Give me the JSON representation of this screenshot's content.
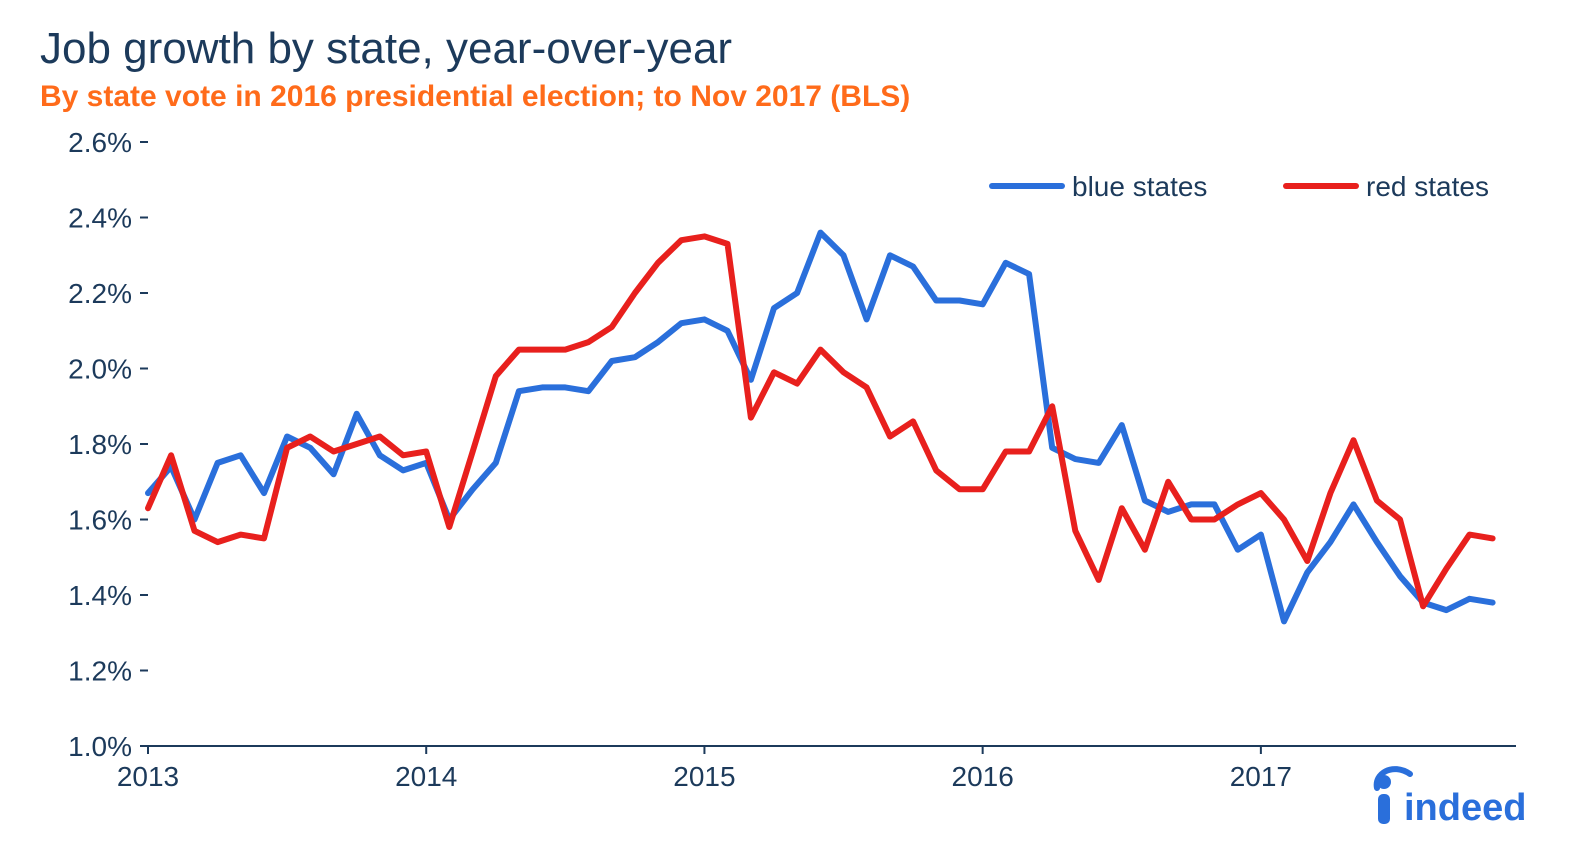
{
  "chart": {
    "type": "line",
    "title": "Job growth by state, year-over-year",
    "subtitle": "By state vote in 2016 presidential election; to Nov 2017 (BLS)",
    "title_color": "#1c3a5b",
    "title_fontsize": 44,
    "subtitle_color": "#ff6b1a",
    "subtitle_fontsize": 30,
    "background_color": "#ffffff",
    "axis_text_color": "#1c3a5b",
    "axis_fontsize": 28,
    "axis_line_color": "#1c3a5b",
    "axis_line_width": 2,
    "line_width": 6,
    "x": {
      "min": 2013.0,
      "max": 2017.917,
      "tick_values": [
        2013,
        2014,
        2015,
        2016,
        2017
      ],
      "tick_labels": [
        "2013",
        "2014",
        "2015",
        "2016",
        "2017"
      ]
    },
    "y": {
      "min": 1.0,
      "max": 2.6,
      "tick_values": [
        1.0,
        1.2,
        1.4,
        1.6,
        1.8,
        2.0,
        2.2,
        2.4,
        2.6
      ],
      "tick_labels": [
        "1.0%",
        "1.2%",
        "1.4%",
        "1.6%",
        "1.8%",
        "2.0%",
        "2.2%",
        "2.4%",
        "2.6%"
      ]
    },
    "legend": {
      "position": "top-right",
      "items": [
        {
          "key": "blue",
          "label": "blue states",
          "color": "#2a6fdb"
        },
        {
          "key": "red",
          "label": "red states",
          "color": "#e8201d"
        }
      ]
    },
    "series": {
      "blue": {
        "label": "blue states",
        "color": "#2a6fdb",
        "points": [
          [
            2013.0,
            1.67
          ],
          [
            2013.083,
            1.74
          ],
          [
            2013.167,
            1.6
          ],
          [
            2013.25,
            1.75
          ],
          [
            2013.333,
            1.77
          ],
          [
            2013.417,
            1.67
          ],
          [
            2013.5,
            1.82
          ],
          [
            2013.583,
            1.79
          ],
          [
            2013.667,
            1.72
          ],
          [
            2013.75,
            1.88
          ],
          [
            2013.833,
            1.77
          ],
          [
            2013.917,
            1.73
          ],
          [
            2014.0,
            1.75
          ],
          [
            2014.083,
            1.6
          ],
          [
            2014.167,
            1.68
          ],
          [
            2014.25,
            1.75
          ],
          [
            2014.333,
            1.94
          ],
          [
            2014.417,
            1.95
          ],
          [
            2014.5,
            1.95
          ],
          [
            2014.583,
            1.94
          ],
          [
            2014.667,
            2.02
          ],
          [
            2014.75,
            2.03
          ],
          [
            2014.833,
            2.07
          ],
          [
            2014.917,
            2.12
          ],
          [
            2015.0,
            2.13
          ],
          [
            2015.083,
            2.1
          ],
          [
            2015.167,
            1.97
          ],
          [
            2015.25,
            2.16
          ],
          [
            2015.333,
            2.2
          ],
          [
            2015.417,
            2.36
          ],
          [
            2015.5,
            2.3
          ],
          [
            2015.583,
            2.13
          ],
          [
            2015.667,
            2.3
          ],
          [
            2015.75,
            2.27
          ],
          [
            2015.833,
            2.18
          ],
          [
            2015.917,
            2.18
          ],
          [
            2016.0,
            2.17
          ],
          [
            2016.083,
            2.28
          ],
          [
            2016.167,
            2.25
          ],
          [
            2016.25,
            1.79
          ],
          [
            2016.333,
            1.76
          ],
          [
            2016.417,
            1.75
          ],
          [
            2016.5,
            1.85
          ],
          [
            2016.583,
            1.65
          ],
          [
            2016.667,
            1.62
          ],
          [
            2016.75,
            1.64
          ],
          [
            2016.833,
            1.64
          ],
          [
            2016.917,
            1.52
          ],
          [
            2017.0,
            1.56
          ],
          [
            2017.083,
            1.33
          ],
          [
            2017.167,
            1.46
          ],
          [
            2017.25,
            1.54
          ],
          [
            2017.333,
            1.64
          ],
          [
            2017.417,
            1.54
          ],
          [
            2017.5,
            1.45
          ],
          [
            2017.583,
            1.38
          ],
          [
            2017.667,
            1.36
          ],
          [
            2017.75,
            1.39
          ],
          [
            2017.833,
            1.38
          ]
        ]
      },
      "red": {
        "label": "red states",
        "color": "#e8201d",
        "points": [
          [
            2013.0,
            1.63
          ],
          [
            2013.083,
            1.77
          ],
          [
            2013.167,
            1.57
          ],
          [
            2013.25,
            1.54
          ],
          [
            2013.333,
            1.56
          ],
          [
            2013.417,
            1.55
          ],
          [
            2013.5,
            1.79
          ],
          [
            2013.583,
            1.82
          ],
          [
            2013.667,
            1.78
          ],
          [
            2013.75,
            1.8
          ],
          [
            2013.833,
            1.82
          ],
          [
            2013.917,
            1.77
          ],
          [
            2014.0,
            1.78
          ],
          [
            2014.083,
            1.58
          ],
          [
            2014.167,
            1.78
          ],
          [
            2014.25,
            1.98
          ],
          [
            2014.333,
            2.05
          ],
          [
            2014.417,
            2.05
          ],
          [
            2014.5,
            2.05
          ],
          [
            2014.583,
            2.07
          ],
          [
            2014.667,
            2.11
          ],
          [
            2014.75,
            2.2
          ],
          [
            2014.833,
            2.28
          ],
          [
            2014.917,
            2.34
          ],
          [
            2015.0,
            2.35
          ],
          [
            2015.083,
            2.33
          ],
          [
            2015.167,
            1.87
          ],
          [
            2015.25,
            1.99
          ],
          [
            2015.333,
            1.96
          ],
          [
            2015.417,
            2.05
          ],
          [
            2015.5,
            1.99
          ],
          [
            2015.583,
            1.95
          ],
          [
            2015.667,
            1.82
          ],
          [
            2015.75,
            1.86
          ],
          [
            2015.833,
            1.73
          ],
          [
            2015.917,
            1.68
          ],
          [
            2016.0,
            1.68
          ],
          [
            2016.083,
            1.78
          ],
          [
            2016.167,
            1.78
          ],
          [
            2016.25,
            1.9
          ],
          [
            2016.333,
            1.57
          ],
          [
            2016.417,
            1.44
          ],
          [
            2016.5,
            1.63
          ],
          [
            2016.583,
            1.52
          ],
          [
            2016.667,
            1.7
          ],
          [
            2016.75,
            1.6
          ],
          [
            2016.833,
            1.6
          ],
          [
            2016.917,
            1.64
          ],
          [
            2017.0,
            1.67
          ],
          [
            2017.083,
            1.6
          ],
          [
            2017.167,
            1.49
          ],
          [
            2017.25,
            1.67
          ],
          [
            2017.333,
            1.81
          ],
          [
            2017.417,
            1.65
          ],
          [
            2017.5,
            1.6
          ],
          [
            2017.583,
            1.37
          ],
          [
            2017.667,
            1.47
          ],
          [
            2017.75,
            1.56
          ],
          [
            2017.833,
            1.55
          ]
        ]
      }
    },
    "logo": {
      "text": "indeed",
      "color": "#2a6fdb",
      "fontsize": 40
    }
  }
}
